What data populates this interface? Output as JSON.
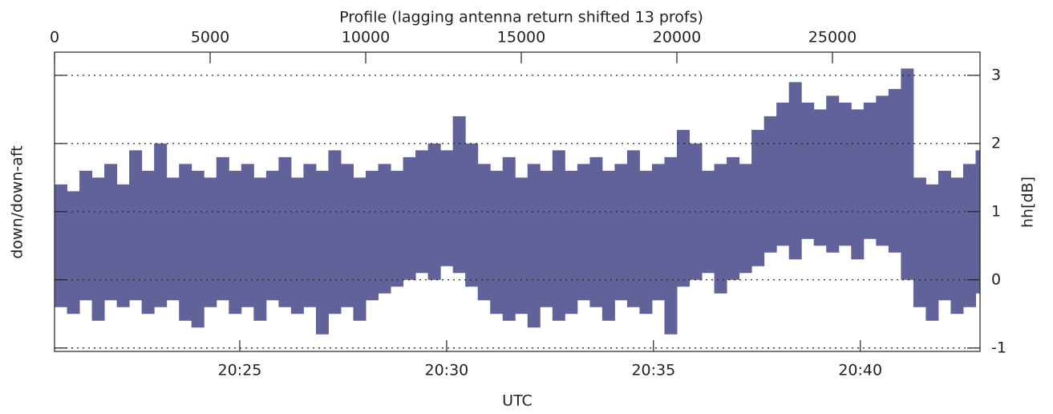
{
  "chart_data": {
    "type": "range",
    "title": "Profile (lagging antenna return shifted 13 profs)",
    "xlabel": "UTC",
    "ylabel": "down/down-aft",
    "y2label": "hh[dB]",
    "xlim": [
      0,
      29742
    ],
    "x2ticks": [
      0,
      5000,
      10000,
      15000,
      20000,
      25000
    ],
    "xticks": [
      {
        "value": 5952,
        "label": "20:25"
      },
      {
        "value": 12600,
        "label": "20:30"
      },
      {
        "value": 19248,
        "label": "20:35"
      },
      {
        "value": 25895,
        "label": "20:40"
      }
    ],
    "ylim": [
      -1.05,
      3.34
    ],
    "yticks": [
      -1,
      0,
      1,
      2,
      3
    ],
    "grid": true,
    "x": [
      0,
      400,
      800,
      1200,
      1600,
      2000,
      2400,
      2800,
      3200,
      3600,
      4000,
      4400,
      4800,
      5200,
      5600,
      6000,
      6400,
      6800,
      7200,
      7600,
      8000,
      8400,
      8800,
      9200,
      9600,
      10000,
      10400,
      10800,
      11200,
      11600,
      12000,
      12400,
      12800,
      13200,
      13600,
      14000,
      14400,
      14800,
      15200,
      15600,
      16000,
      16400,
      16800,
      17200,
      17600,
      18000,
      18400,
      18800,
      19200,
      19600,
      20000,
      20400,
      20800,
      21200,
      21600,
      22000,
      22400,
      22800,
      23200,
      23600,
      24000,
      24400,
      24800,
      25200,
      25600,
      26000,
      26400,
      26800,
      27200,
      27600,
      28000,
      28400,
      28800,
      29200,
      29600
    ],
    "series": [
      {
        "color": "#62629a",
        "high": [
          1.4,
          1.3,
          1.6,
          1.5,
          1.7,
          1.4,
          1.9,
          1.6,
          2.0,
          1.5,
          1.7,
          1.6,
          1.5,
          1.8,
          1.6,
          1.7,
          1.5,
          1.6,
          1.8,
          1.5,
          1.7,
          1.6,
          1.9,
          1.7,
          1.5,
          1.6,
          1.7,
          1.6,
          1.8,
          1.9,
          2.0,
          1.9,
          2.4,
          2.0,
          1.7,
          1.6,
          1.8,
          1.5,
          1.7,
          1.6,
          1.9,
          1.6,
          1.7,
          1.8,
          1.6,
          1.7,
          1.9,
          1.6,
          1.7,
          1.8,
          2.2,
          2.0,
          1.6,
          1.7,
          1.8,
          1.7,
          2.2,
          2.4,
          2.6,
          2.9,
          2.6,
          2.5,
          2.7,
          2.6,
          2.5,
          2.6,
          2.7,
          2.8,
          3.1,
          1.5,
          1.4,
          1.6,
          1.5,
          1.7,
          1.9
        ],
        "low": [
          -0.4,
          -0.5,
          -0.3,
          -0.6,
          -0.3,
          -0.4,
          -0.3,
          -0.5,
          -0.4,
          -0.3,
          -0.6,
          -0.7,
          -0.4,
          -0.3,
          -0.5,
          -0.4,
          -0.6,
          -0.3,
          -0.4,
          -0.5,
          -0.4,
          -0.8,
          -0.5,
          -0.4,
          -0.6,
          -0.3,
          -0.2,
          -0.1,
          0.0,
          0.1,
          0.0,
          0.2,
          0.1,
          -0.1,
          -0.3,
          -0.5,
          -0.6,
          -0.5,
          -0.7,
          -0.4,
          -0.6,
          -0.5,
          -0.3,
          -0.4,
          -0.6,
          -0.3,
          -0.4,
          -0.5,
          -0.3,
          -0.8,
          -0.1,
          0.0,
          0.1,
          -0.2,
          0.0,
          0.1,
          0.2,
          0.4,
          0.5,
          0.3,
          0.6,
          0.5,
          0.4,
          0.5,
          0.3,
          0.6,
          0.5,
          0.4,
          0.0,
          -0.4,
          -0.6,
          -0.3,
          -0.5,
          -0.4,
          -0.2
        ]
      }
    ]
  }
}
